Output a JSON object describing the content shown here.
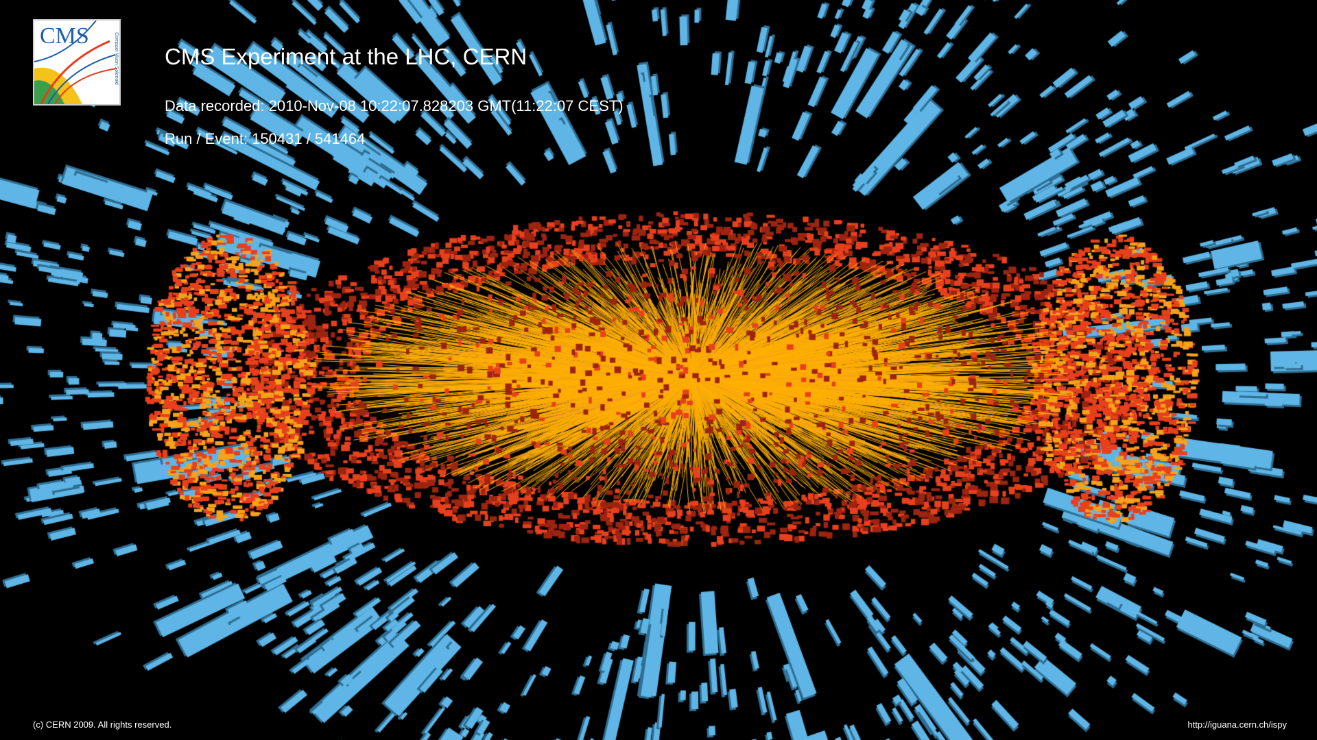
{
  "header": {
    "title": "CMS Experiment at the LHC, CERN",
    "data_recorded": "Data recorded: 2010-Nov-08 10:22:07.828203 GMT(11:22:07 CEST)",
    "run_event": "Run / Event: 150431 / 541464"
  },
  "logo": {
    "text": "CMS",
    "subtext": "Compact Muon Solenoid"
  },
  "footer": {
    "copyright": "(c) CERN 2009. All rights reserved.",
    "url": "http://iguana.cern.ch/ispy"
  },
  "colors": {
    "background": "#000000",
    "muon_chamber": "#5fb6e6",
    "muon_chamber_dark": "#2e6e93",
    "hcal": "#e8401c",
    "hcal_dark": "#9c2410",
    "ecal": "#f7a21a",
    "tracks": "#ffb000",
    "logo_blue": "#1d5fa8"
  }
}
